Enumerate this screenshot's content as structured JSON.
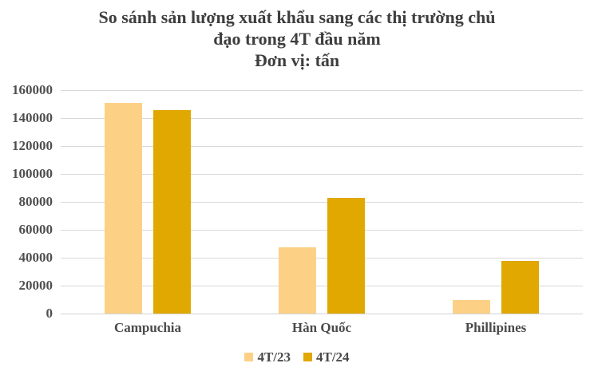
{
  "title_lines": [
    "So sánh sản lượng xuất khẩu sang các thị trường chủ",
    "đạo trong 4T đầu năm",
    "Đơn vị: tấn"
  ],
  "chart_data": {
    "type": "bar",
    "title": "So sánh sản lượng xuất khẩu sang các thị trường chủ đạo trong 4T đầu năm",
    "subtitle": "Đơn vị: tấn",
    "categories": [
      "Campuchia",
      "Hàn Quốc",
      "Phillipines"
    ],
    "series": [
      {
        "name": "4T/23",
        "color": "#FCD186",
        "values": [
          151000,
          47500,
          10000
        ]
      },
      {
        "name": "4T/24",
        "color": "#E0A800",
        "values": [
          146000,
          83000,
          38000
        ]
      }
    ],
    "ylim": [
      0,
      160000
    ],
    "ytick_step": 20000,
    "ytick_labels": [
      "0",
      "20000",
      "40000",
      "60000",
      "80000",
      "100000",
      "120000",
      "140000",
      "160000"
    ],
    "grid": true,
    "legend_position": "bottom"
  },
  "colors": {
    "grid": "#d9d9d9",
    "axis": "#d3d3d3",
    "title_text": "#3e3e3e",
    "label_text": "#4a4a4a"
  }
}
